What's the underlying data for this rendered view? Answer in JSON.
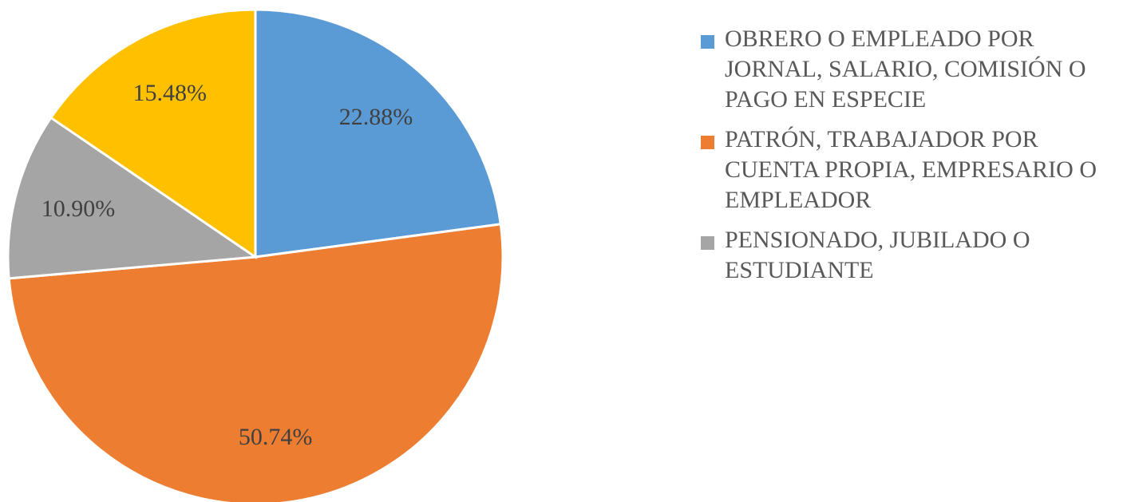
{
  "chart_data": {
    "type": "pie",
    "categories": [
      "OBRERO O EMPLEADO POR JORNAL, SALARIO, COMISIÓN O PAGO EN ESPECIE",
      "PATRÓN, TRABAJADOR POR CUENTA PROPIA, EMPRESARIO O EMPLEADOR",
      "PENSIONADO, JUBILADO O ESTUDIANTE",
      null
    ],
    "values": [
      22.88,
      50.74,
      10.9,
      15.48
    ],
    "value_labels": [
      "22.88%",
      "50.74%",
      "10.90%",
      "15.48%"
    ],
    "colors": [
      "#5b9bd5",
      "#ed7d31",
      "#a5a5a5",
      "#ffc000"
    ],
    "legend": "right"
  }
}
